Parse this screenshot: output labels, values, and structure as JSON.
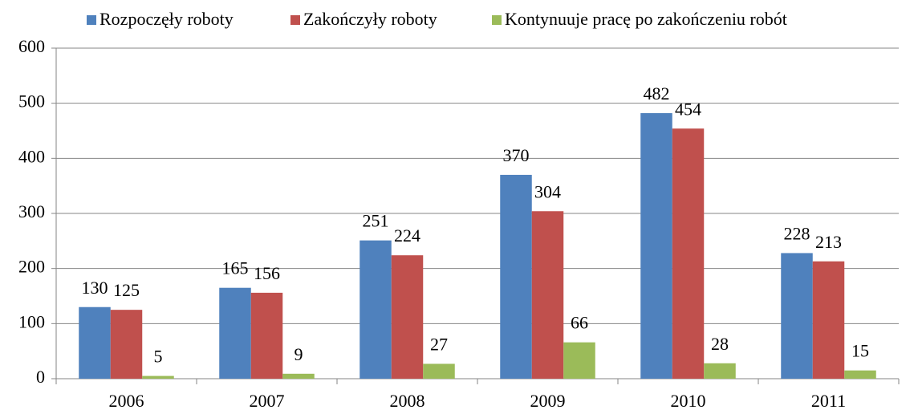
{
  "chart_data": {
    "type": "bar",
    "categories": [
      "2006",
      "2007",
      "2008",
      "2009",
      "2010",
      "2011"
    ],
    "series": [
      {
        "name": "Rozpoczęły roboty",
        "color": "#4f81bd",
        "values": [
          130,
          165,
          251,
          370,
          482,
          228
        ]
      },
      {
        "name": "Zakończyły roboty",
        "color": "#c0504d",
        "values": [
          125,
          156,
          224,
          304,
          454,
          213
        ]
      },
      {
        "name": "Kontynuuje pracę po zakończeniu robót",
        "color": "#9bbb59",
        "values": [
          5,
          9,
          27,
          66,
          28,
          15
        ]
      }
    ],
    "ylim": [
      0,
      600
    ],
    "yticks": [
      0,
      100,
      200,
      300,
      400,
      500,
      600
    ],
    "grid": true,
    "legend": "top"
  }
}
